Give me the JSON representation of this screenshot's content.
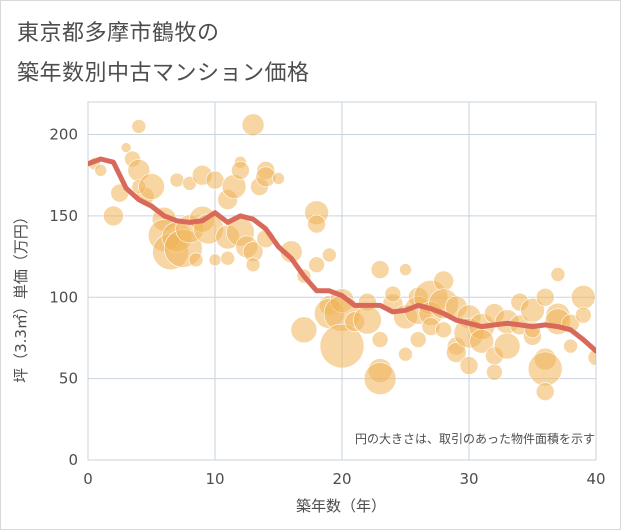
{
  "chart_data": {
    "type": "scatter",
    "title": [
      "東京都多摩市鶴牧の",
      "築年数別中古マンション価格"
    ],
    "xlabel": "築年数（年）",
    "ylabel": "坪（3.3㎡）単価（万円）",
    "xlim": [
      0,
      40
    ],
    "ylim": [
      0,
      220
    ],
    "xticks": [
      0,
      10,
      20,
      30,
      40
    ],
    "yticks": [
      0,
      50,
      100,
      150,
      200
    ],
    "grid": true,
    "annotation": "円の大きさは、取引のあった物件面積を示す",
    "colors": {
      "bubble": "#f0b45a",
      "line": "#d9695a",
      "grid": "#c9d3dd",
      "text": "#4d4d4d"
    },
    "series": [
      {
        "type": "line",
        "points": [
          [
            0,
            182
          ],
          [
            1,
            185
          ],
          [
            2,
            183
          ],
          [
            3,
            167
          ],
          [
            4,
            160
          ],
          [
            5,
            156
          ],
          [
            6,
            150
          ],
          [
            7,
            147
          ],
          [
            8,
            146
          ],
          [
            9,
            147
          ],
          [
            10,
            152
          ],
          [
            11,
            146
          ],
          [
            12,
            150
          ],
          [
            13,
            148
          ],
          [
            14,
            142
          ],
          [
            15,
            131
          ],
          [
            16,
            124
          ],
          [
            17,
            113
          ],
          [
            18,
            104
          ],
          [
            19,
            104
          ],
          [
            20,
            101
          ],
          [
            21,
            95
          ],
          [
            22,
            95
          ],
          [
            23,
            95
          ],
          [
            24,
            91
          ],
          [
            25,
            92
          ],
          [
            26,
            95
          ],
          [
            27,
            93
          ],
          [
            28,
            90
          ],
          [
            29,
            86
          ],
          [
            30,
            84
          ],
          [
            31,
            82
          ],
          [
            32,
            83
          ],
          [
            33,
            84
          ],
          [
            34,
            83
          ],
          [
            35,
            82
          ],
          [
            36,
            83
          ],
          [
            37,
            82
          ],
          [
            38,
            80
          ],
          [
            39,
            74
          ],
          [
            40,
            67
          ]
        ]
      },
      {
        "type": "bubble",
        "points": [
          [
            0.5,
            182,
            6
          ],
          [
            1,
            178,
            6
          ],
          [
            2.5,
            164,
            9
          ],
          [
            2,
            150,
            10
          ],
          [
            3,
            192,
            5
          ],
          [
            4,
            205,
            7
          ],
          [
            3.5,
            185,
            8
          ],
          [
            4,
            178,
            11
          ],
          [
            4.5,
            162,
            9
          ],
          [
            4,
            168,
            7
          ],
          [
            5,
            168,
            13
          ],
          [
            6,
            148,
            12
          ],
          [
            6,
            138,
            16
          ],
          [
            6.5,
            128,
            18
          ],
          [
            7,
            172,
            7
          ],
          [
            7,
            137,
            15
          ],
          [
            7.5,
            130,
            19
          ],
          [
            8,
            142,
            14
          ],
          [
            8,
            170,
            7
          ],
          [
            8.5,
            123,
            7
          ],
          [
            9,
            175,
            10
          ],
          [
            9,
            148,
            13
          ],
          [
            9.5,
            142,
            15
          ],
          [
            10,
            172,
            9
          ],
          [
            10,
            123,
            6
          ],
          [
            11,
            160,
            10
          ],
          [
            11,
            137,
            12
          ],
          [
            11.5,
            168,
            12
          ],
          [
            11,
            124,
            7
          ],
          [
            12,
            183,
            6
          ],
          [
            12,
            178,
            9
          ],
          [
            12,
            140,
            14
          ],
          [
            12.5,
            131,
            11
          ],
          [
            13,
            206,
            11
          ],
          [
            13,
            128,
            10
          ],
          [
            13,
            120,
            7
          ],
          [
            13.5,
            168,
            9
          ],
          [
            14,
            178,
            9
          ],
          [
            14,
            174,
            10
          ],
          [
            14,
            136,
            9
          ],
          [
            15,
            173,
            6
          ],
          [
            16,
            128,
            11
          ],
          [
            17,
            80,
            13
          ],
          [
            17,
            113,
            7
          ],
          [
            18,
            152,
            12
          ],
          [
            18,
            145,
            9
          ],
          [
            18,
            120,
            8
          ],
          [
            19,
            126,
            7
          ],
          [
            19,
            95,
            10
          ],
          [
            19,
            90,
            15
          ],
          [
            20,
            98,
            12
          ],
          [
            20,
            90,
            18
          ],
          [
            20,
            70,
            22
          ],
          [
            21,
            85,
            10
          ],
          [
            22,
            97,
            9
          ],
          [
            22,
            86,
            14
          ],
          [
            23,
            117,
            9
          ],
          [
            23,
            74,
            8
          ],
          [
            23,
            55,
            12
          ],
          [
            23,
            50,
            16
          ],
          [
            24,
            96,
            10
          ],
          [
            24,
            102,
            8
          ],
          [
            25,
            117,
            6
          ],
          [
            25,
            88,
            12
          ],
          [
            25,
            65,
            7
          ],
          [
            26,
            100,
            10
          ],
          [
            26,
            92,
            14
          ],
          [
            26,
            74,
            8
          ],
          [
            27,
            100,
            17
          ],
          [
            27,
            90,
            12
          ],
          [
            27,
            82,
            9
          ],
          [
            28,
            110,
            10
          ],
          [
            28,
            96,
            15
          ],
          [
            28,
            80,
            8
          ],
          [
            29,
            70,
            9
          ],
          [
            29,
            94,
            11
          ],
          [
            29,
            66,
            10
          ],
          [
            30,
            88,
            12
          ],
          [
            30,
            78,
            15
          ],
          [
            30,
            58,
            9
          ],
          [
            31,
            82,
            13
          ],
          [
            31,
            73,
            12
          ],
          [
            32,
            90,
            10
          ],
          [
            32,
            64,
            9
          ],
          [
            32,
            54,
            8
          ],
          [
            33,
            85,
            12
          ],
          [
            33,
            70,
            13
          ],
          [
            34,
            97,
            9
          ],
          [
            34,
            83,
            10
          ],
          [
            35,
            76,
            9
          ],
          [
            35,
            92,
            12
          ],
          [
            35,
            80,
            8
          ],
          [
            36,
            100,
            9
          ],
          [
            36,
            62,
            11
          ],
          [
            36,
            56,
            17
          ],
          [
            36,
            42,
            9
          ],
          [
            37,
            114,
            7
          ],
          [
            37,
            89,
            12
          ],
          [
            37,
            85,
            13
          ],
          [
            38,
            84,
            9
          ],
          [
            38,
            70,
            7
          ],
          [
            39,
            100,
            12
          ],
          [
            39,
            89,
            8
          ],
          [
            40,
            63,
            8
          ]
        ]
      }
    ]
  }
}
